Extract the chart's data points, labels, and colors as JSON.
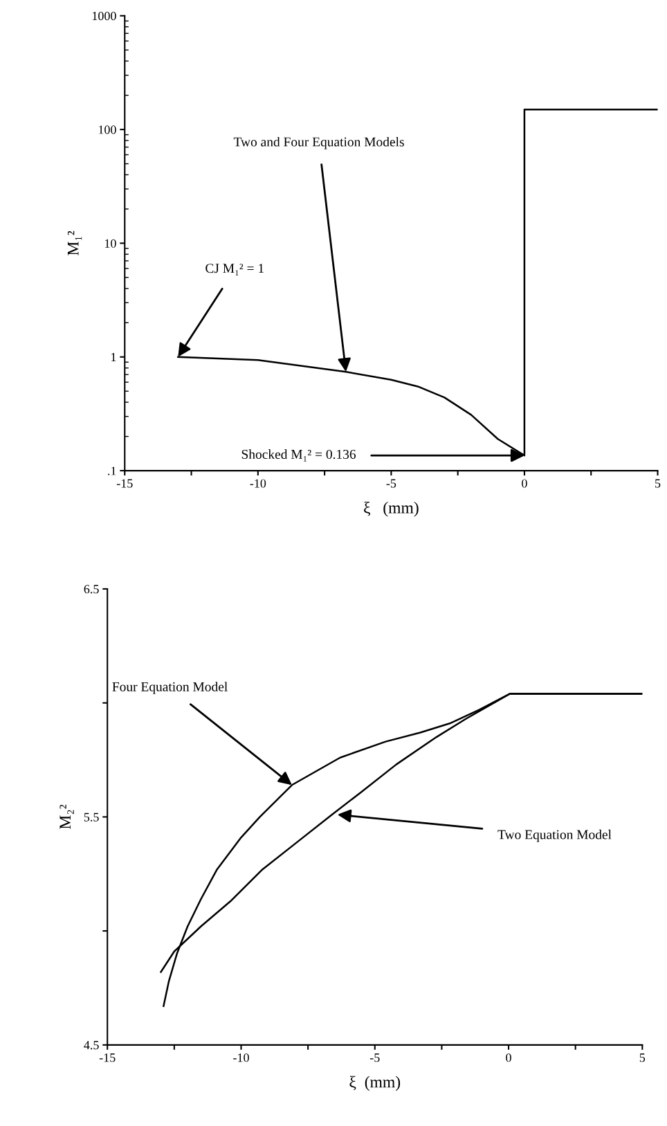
{
  "chart_data": [
    {
      "type": "line",
      "xlabel": "ξ   (mm)",
      "ylabel": "M₁²",
      "log": "y",
      "grid": false,
      "marker": "none",
      "line_style": "solid",
      "xlim": [
        -15,
        5
      ],
      "ylim": [
        0.1,
        1000
      ],
      "xticks": [
        -15,
        {
          "value": -12.5,
          "label": null
        },
        -10,
        {
          "value": -7.5,
          "label": null
        },
        -5,
        {
          "value": -2.5,
          "label": null
        },
        0,
        {
          "value": 2.5,
          "label": null
        },
        5
      ],
      "yticks": [
        {
          "value": 0.1,
          "label": ".1"
        },
        1,
        10,
        100,
        1000
      ],
      "series": [
        {
          "color": "#000000",
          "x": [
            -13,
            -10,
            -6.7,
            -5,
            -4,
            -3,
            -2,
            -1,
            0,
            0,
            5
          ],
          "values": [
            1.0,
            0.94,
            0.74,
            0.63,
            0.55,
            0.44,
            0.31,
            0.19,
            0.136,
            150,
            150
          ]
        }
      ],
      "annotations": [
        {
          "text": "Two and Four Equation Models",
          "x": -6.7,
          "y": 0.74
        },
        {
          "text": "CJ M₁² = 1",
          "x": -13,
          "y": 1.0
        },
        {
          "text": "Shocked M₁² = 0.136",
          "x": 0,
          "y": 0.136
        }
      ]
    },
    {
      "type": "line",
      "xlabel": "ξ  (mm)",
      "ylabel": "M₂²",
      "grid": false,
      "marker": "none",
      "line_style": "solid",
      "xlim": [
        -15,
        5
      ],
      "ylim": [
        4.5,
        6.5
      ],
      "xticks": [
        -15,
        {
          "value": -12.5,
          "label": null
        },
        -10,
        {
          "value": -7.5,
          "label": null
        },
        -5,
        {
          "value": -2.5,
          "label": null
        },
        0,
        {
          "value": 2.5,
          "label": null
        },
        5
      ],
      "yticks": [
        4.5,
        {
          "value": 5.0,
          "label": null
        },
        5.5,
        {
          "value": 6.0,
          "label": null
        },
        6.5
      ],
      "series": [
        {
          "color": "#000000",
          "x": [
            -12.9,
            -12.7,
            -12.4,
            -12.0,
            -11.5,
            -10.9,
            -10.0,
            -9.3,
            -8.1,
            -6.3,
            -4.6,
            -3.3,
            -2.2,
            -1.1,
            0.05,
            5
          ],
          "values": [
            4.67,
            4.78,
            4.9,
            5.02,
            5.14,
            5.27,
            5.41,
            5.5,
            5.64,
            5.76,
            5.83,
            5.87,
            5.91,
            5.97,
            6.04,
            6.04
          ]
        },
        {
          "color": "#000000",
          "x": [
            -13.0,
            -12.5,
            -11.5,
            -10.4,
            -9.2,
            -7.9,
            -6.6,
            -5.5,
            -4.2,
            -2.7,
            -1.6,
            0.05,
            5
          ],
          "values": [
            4.82,
            4.91,
            5.02,
            5.13,
            5.27,
            5.39,
            5.51,
            5.61,
            5.73,
            5.85,
            5.93,
            6.04,
            6.04
          ]
        }
      ],
      "annotations": [
        {
          "text": "Four Equation Model",
          "x": -8.1,
          "y": 5.64
        },
        {
          "text": "Two Equation Model",
          "x": -6.4,
          "y": 5.51
        }
      ]
    }
  ]
}
